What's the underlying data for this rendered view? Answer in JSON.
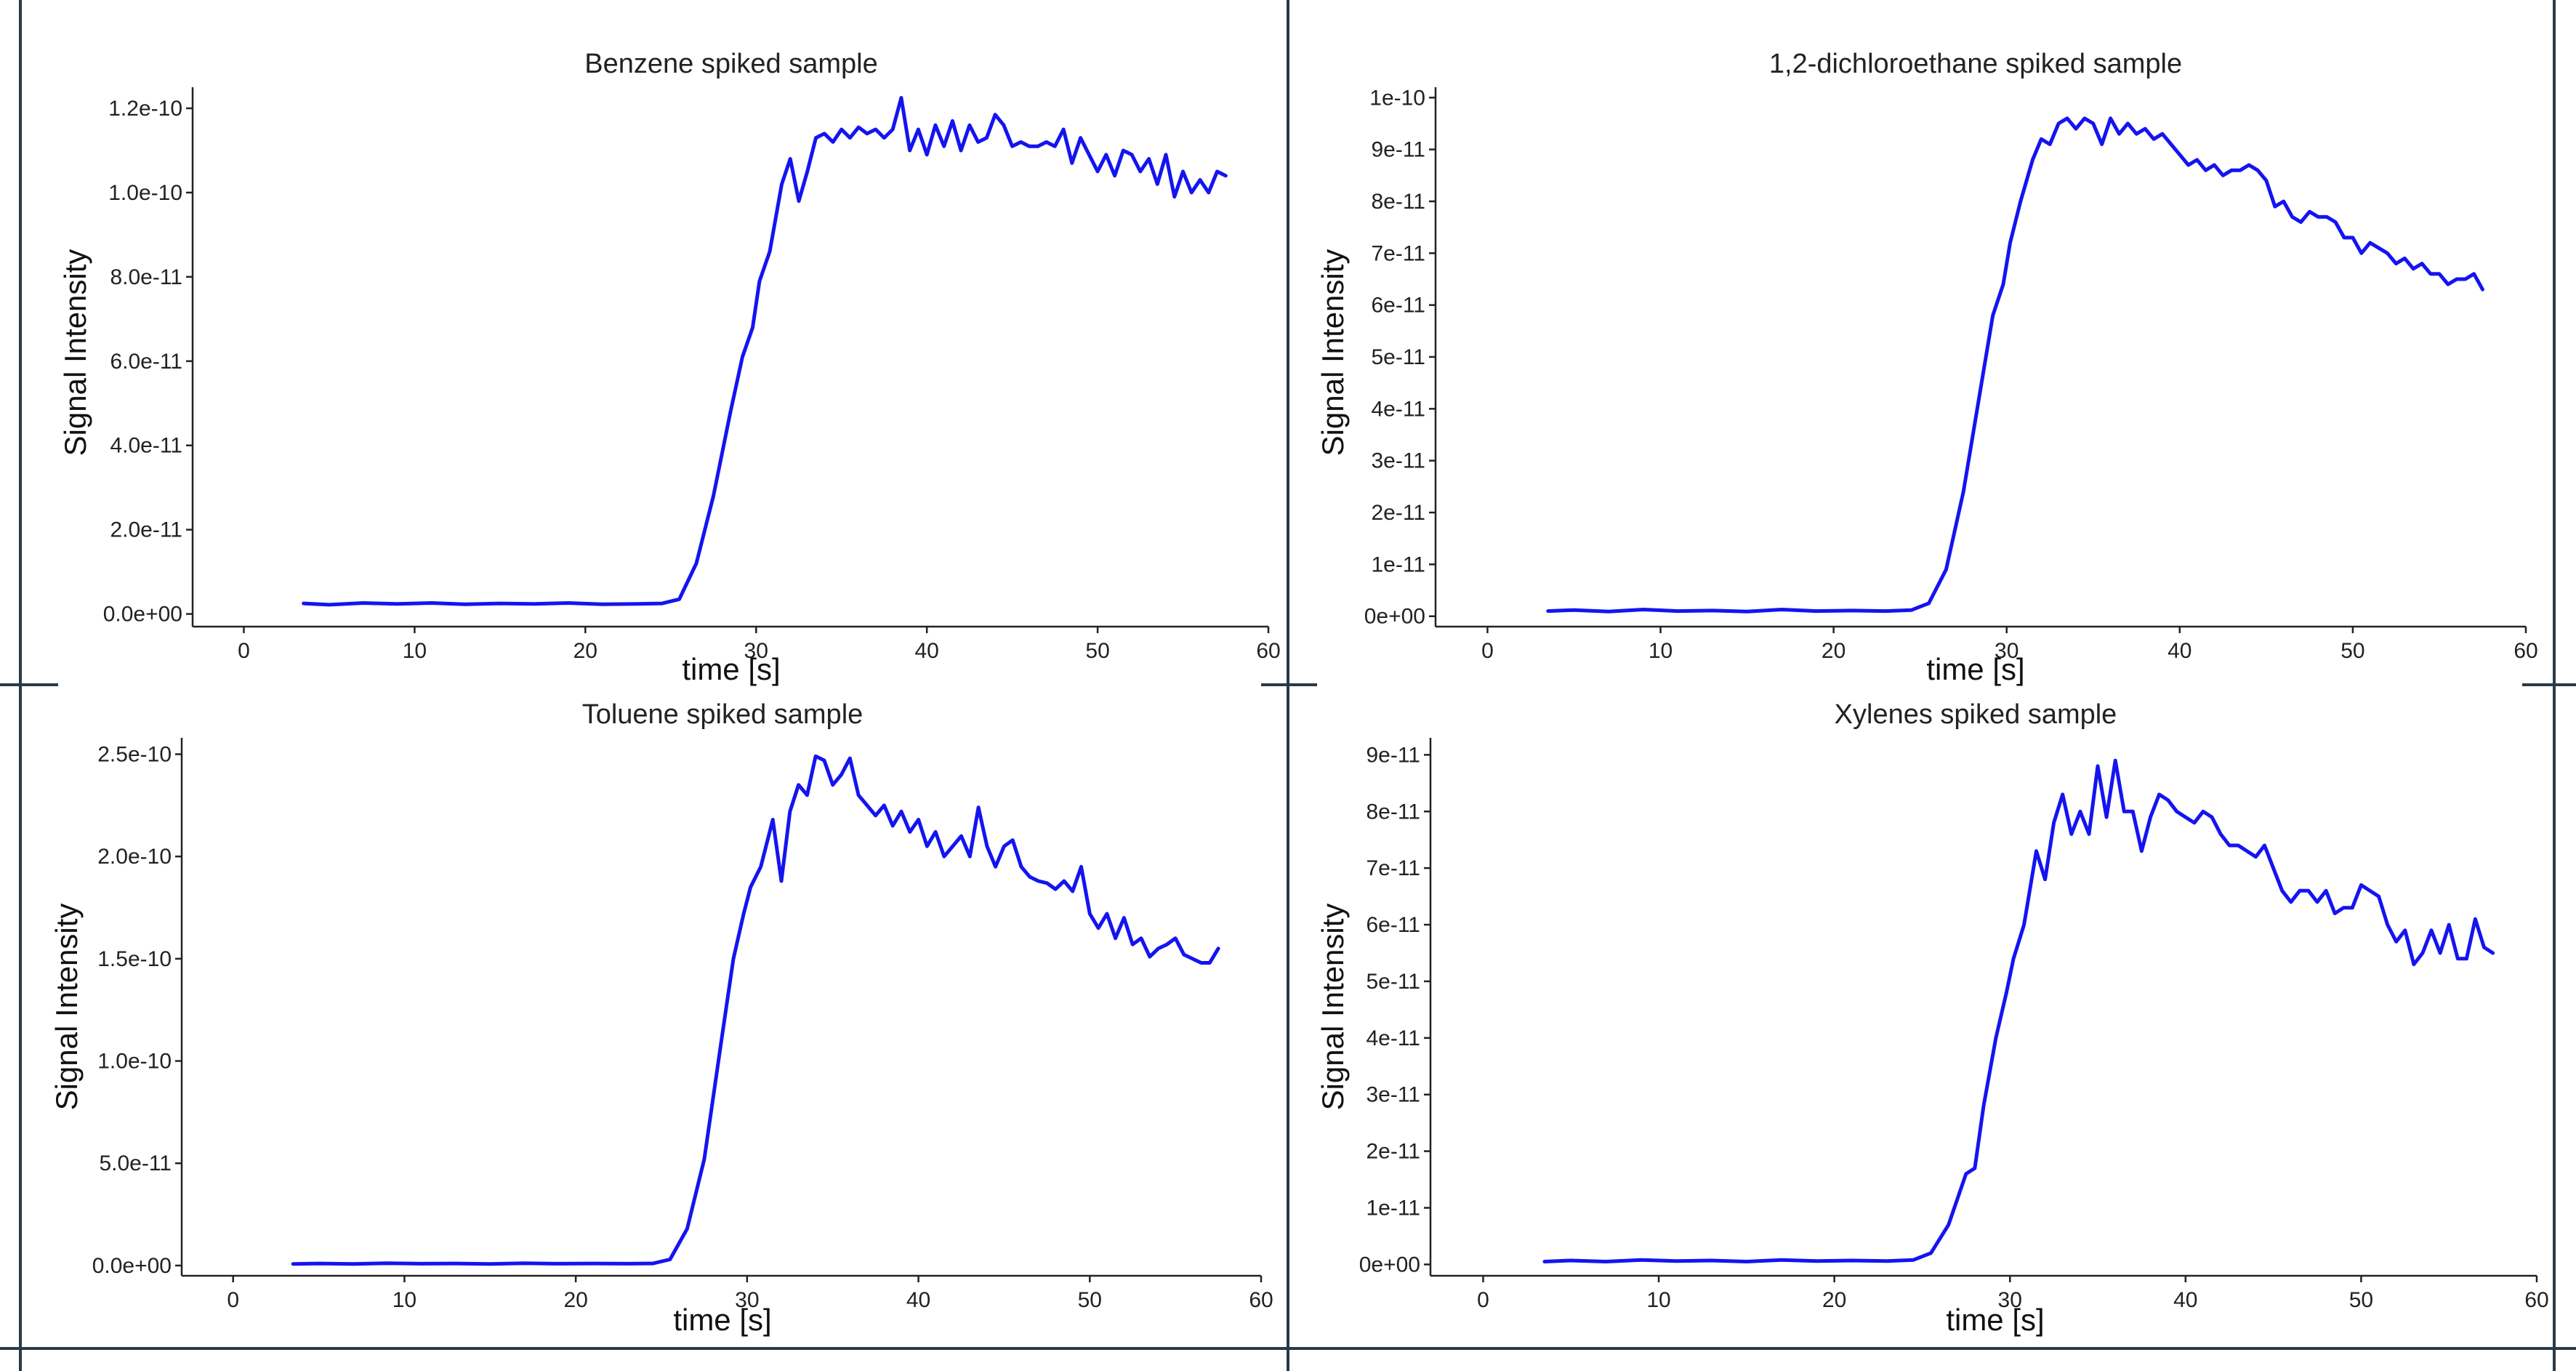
{
  "colors": {
    "line": "#1414f0",
    "frame": "#2a3a46"
  },
  "chart_data": [
    {
      "type": "line",
      "title": "Benzene spiked sample",
      "xlabel": "time [s]",
      "ylabel": "Signal Intensity",
      "xlim": [
        -3,
        60
      ],
      "ylim": [
        -3e-12,
        1.25e-10
      ],
      "xticks": [
        0,
        10,
        20,
        30,
        40,
        50,
        60
      ],
      "xtick_labels": [
        "0",
        "10",
        "20",
        "30",
        "40",
        "50",
        "60"
      ],
      "yticks": [
        0,
        2e-11,
        4e-11,
        6e-11,
        8e-11,
        1e-10,
        1.2e-10
      ],
      "ytick_labels": [
        "0.0e+00",
        "2.0e-11",
        "4.0e-11",
        "6.0e-11",
        "8.0e-11",
        "1.0e-10",
        "1.2e-10"
      ],
      "series": [
        {
          "x": [
            3.5,
            5,
            7,
            9,
            11,
            13,
            15,
            17,
            19,
            21,
            23,
            24.5,
            25.5,
            26.5,
            27.5,
            28.5,
            29.2,
            29.8,
            30.2,
            30.8,
            31.5,
            32,
            32.5,
            33,
            33.5,
            34,
            34.5,
            35,
            35.5,
            36,
            36.5,
            37,
            37.5,
            38,
            38.5,
            39,
            39.5,
            40,
            40.5,
            41,
            41.5,
            42,
            42.5,
            43,
            43.5,
            44,
            44.5,
            45,
            45.5,
            46,
            46.5,
            47,
            47.5,
            48,
            48.5,
            49,
            49.5,
            50,
            50.5,
            51,
            51.5,
            52,
            52.5,
            53,
            53.5,
            54,
            54.5,
            55,
            55.5,
            56,
            56.5,
            57,
            57.5
          ],
          "y": [
            2.5e-12,
            2.2e-12,
            2.6e-12,
            2.4e-12,
            2.6e-12,
            2.3e-12,
            2.5e-12,
            2.4e-12,
            2.6e-12,
            2.3e-12,
            2.4e-12,
            2.5e-12,
            3.5e-12,
            1.2e-11,
            2.8e-11,
            4.8e-11,
            6.1e-11,
            6.8e-11,
            7.9e-11,
            8.6e-11,
            1.02e-10,
            1.08e-10,
            9.8e-11,
            1.05e-10,
            1.13e-10,
            1.14e-10,
            1.12e-10,
            1.15e-10,
            1.13e-10,
            1.155e-10,
            1.14e-10,
            1.15e-10,
            1.13e-10,
            1.15e-10,
            1.225e-10,
            1.1e-10,
            1.15e-10,
            1.09e-10,
            1.16e-10,
            1.11e-10,
            1.17e-10,
            1.1e-10,
            1.16e-10,
            1.12e-10,
            1.13e-10,
            1.185e-10,
            1.16e-10,
            1.11e-10,
            1.12e-10,
            1.11e-10,
            1.11e-10,
            1.12e-10,
            1.11e-10,
            1.15e-10,
            1.07e-10,
            1.13e-10,
            1.09e-10,
            1.05e-10,
            1.09e-10,
            1.04e-10,
            1.1e-10,
            1.09e-10,
            1.05e-10,
            1.08e-10,
            1.02e-10,
            1.09e-10,
            9.9e-11,
            1.05e-10,
            1e-10,
            1.03e-10,
            1e-10,
            1.05e-10,
            1.04e-10
          ]
        }
      ]
    },
    {
      "type": "line",
      "title": "1,2-dichloroethane spiked sample",
      "xlabel": "time [s]",
      "ylabel": "Signal Intensity",
      "xlim": [
        -3,
        60
      ],
      "ylim": [
        -2e-12,
        1.02e-10
      ],
      "xticks": [
        0,
        10,
        20,
        30,
        40,
        50,
        60
      ],
      "xtick_labels": [
        "0",
        "10",
        "20",
        "30",
        "40",
        "50",
        "60"
      ],
      "yticks": [
        0,
        1e-11,
        2e-11,
        3e-11,
        4e-11,
        5e-11,
        6e-11,
        7e-11,
        8e-11,
        9e-11,
        1e-10
      ],
      "ytick_labels": [
        "0e+00",
        "1e-11",
        "2e-11",
        "3e-11",
        "4e-11",
        "5e-11",
        "6e-11",
        "7e-11",
        "8e-11",
        "9e-11",
        "1e-10"
      ],
      "series": [
        {
          "x": [
            3.5,
            5,
            7,
            9,
            11,
            13,
            15,
            17,
            19,
            21,
            23,
            24.5,
            25.5,
            26.5,
            27.5,
            28.5,
            29.2,
            29.8,
            30.2,
            30.8,
            31.5,
            32,
            32.5,
            33,
            33.5,
            34,
            34.5,
            35,
            35.5,
            36,
            36.5,
            37,
            37.5,
            38,
            38.5,
            39,
            39.5,
            40,
            40.5,
            41,
            41.5,
            42,
            42.5,
            43,
            43.5,
            44,
            44.5,
            45,
            45.5,
            46,
            46.5,
            47,
            47.5,
            48,
            48.5,
            49,
            49.5,
            50,
            50.5,
            51,
            51.5,
            52,
            52.5,
            53,
            53.5,
            54,
            54.5,
            55,
            55.5,
            56,
            56.5,
            57,
            57.5
          ],
          "y": [
            1e-12,
            1.2e-12,
            9e-13,
            1.3e-12,
            1e-12,
            1.1e-12,
            9e-13,
            1.3e-12,
            1e-12,
            1.1e-12,
            1e-12,
            1.2e-12,
            2.5e-12,
            9e-12,
            2.4e-11,
            4.4e-11,
            5.8e-11,
            6.4e-11,
            7.2e-11,
            8e-11,
            8.8e-11,
            9.2e-11,
            9.1e-11,
            9.5e-11,
            9.6e-11,
            9.4e-11,
            9.6e-11,
            9.5e-11,
            9.1e-11,
            9.6e-11,
            9.3e-11,
            9.5e-11,
            9.3e-11,
            9.4e-11,
            9.2e-11,
            9.3e-11,
            9.1e-11,
            8.9e-11,
            8.7e-11,
            8.8e-11,
            8.6e-11,
            8.7e-11,
            8.5e-11,
            8.6e-11,
            8.6e-11,
            8.7e-11,
            8.6e-11,
            8.4e-11,
            7.9e-11,
            8e-11,
            7.7e-11,
            7.6e-11,
            7.8e-11,
            7.7e-11,
            7.7e-11,
            7.6e-11,
            7.3e-11,
            7.3e-11,
            7e-11,
            7.2e-11,
            7.1e-11,
            7e-11,
            6.8e-11,
            6.9e-11,
            6.7e-11,
            6.8e-11,
            6.6e-11,
            6.6e-11,
            6.4e-11,
            6.5e-11,
            6.5e-11,
            6.6e-11,
            6.3e-11
          ]
        }
      ]
    },
    {
      "type": "line",
      "title": "Toluene spiked sample",
      "xlabel": "time [s]",
      "ylabel": "Signal Intensity",
      "xlim": [
        -3,
        60
      ],
      "ylim": [
        -5e-12,
        2.58e-10
      ],
      "xticks": [
        0,
        10,
        20,
        30,
        40,
        50,
        60
      ],
      "xtick_labels": [
        "0",
        "10",
        "20",
        "30",
        "40",
        "50",
        "60"
      ],
      "yticks": [
        0,
        5e-11,
        1e-10,
        1.5e-10,
        2e-10,
        2.5e-10
      ],
      "ytick_labels": [
        "0.0e+00",
        "5.0e-11",
        "1.0e-10",
        "1.5e-10",
        "2.0e-10",
        "2.5e-10"
      ],
      "series": [
        {
          "x": [
            3.5,
            5,
            7,
            9,
            11,
            13,
            15,
            17,
            19,
            21,
            23,
            24.5,
            25.5,
            26.5,
            27.5,
            28.5,
            29.2,
            29.8,
            30.2,
            30.8,
            31.5,
            32,
            32.5,
            33,
            33.5,
            34,
            34.5,
            35,
            35.5,
            36,
            36.5,
            37,
            37.5,
            38,
            38.5,
            39,
            39.5,
            40,
            40.5,
            41,
            41.5,
            42,
            42.5,
            43,
            43.5,
            44,
            44.5,
            45,
            45.5,
            46,
            46.5,
            47,
            47.5,
            48,
            48.5,
            49,
            49.5,
            50,
            50.5,
            51,
            51.5,
            52,
            52.5,
            53,
            53.5,
            54,
            54.5,
            55,
            55.5,
            56,
            56.5,
            57,
            57.5
          ],
          "y": [
            8e-13,
            1e-12,
            8e-13,
            1.1e-12,
            9e-13,
            1e-12,
            8e-13,
            1.1e-12,
            9e-13,
            1e-12,
            9e-13,
            1e-12,
            3e-12,
            1.8e-11,
            5.2e-11,
            1.1e-10,
            1.5e-10,
            1.72e-10,
            1.85e-10,
            1.95e-10,
            2.18e-10,
            1.88e-10,
            2.22e-10,
            2.35e-10,
            2.3e-10,
            2.49e-10,
            2.47e-10,
            2.35e-10,
            2.4e-10,
            2.48e-10,
            2.3e-10,
            2.25e-10,
            2.2e-10,
            2.25e-10,
            2.15e-10,
            2.22e-10,
            2.12e-10,
            2.18e-10,
            2.05e-10,
            2.12e-10,
            2e-10,
            2.05e-10,
            2.1e-10,
            2e-10,
            2.24e-10,
            2.05e-10,
            1.95e-10,
            2.05e-10,
            2.08e-10,
            1.95e-10,
            1.9e-10,
            1.88e-10,
            1.87e-10,
            1.84e-10,
            1.88e-10,
            1.83e-10,
            1.95e-10,
            1.72e-10,
            1.65e-10,
            1.72e-10,
            1.6e-10,
            1.7e-10,
            1.57e-10,
            1.6e-10,
            1.51e-10,
            1.55e-10,
            1.57e-10,
            1.6e-10,
            1.52e-10,
            1.5e-10,
            1.48e-10,
            1.48e-10,
            1.55e-10
          ]
        }
      ]
    },
    {
      "type": "line",
      "title": "Xylenes spiked sample",
      "xlabel": "time [s]",
      "ylabel": "Signal Intensity",
      "xlim": [
        -3,
        60
      ],
      "ylim": [
        -2e-12,
        9.3e-11
      ],
      "xticks": [
        0,
        10,
        20,
        30,
        40,
        50,
        60
      ],
      "xtick_labels": [
        "0",
        "10",
        "20",
        "30",
        "40",
        "50",
        "60"
      ],
      "yticks": [
        0,
        1e-11,
        2e-11,
        3e-11,
        4e-11,
        5e-11,
        6e-11,
        7e-11,
        8e-11,
        9e-11
      ],
      "ytick_labels": [
        "0e+00",
        "1e-11",
        "2e-11",
        "3e-11",
        "4e-11",
        "5e-11",
        "6e-11",
        "7e-11",
        "8e-11",
        "9e-11"
      ],
      "series": [
        {
          "x": [
            3.5,
            5,
            7,
            9,
            11,
            13,
            15,
            17,
            19,
            21,
            23,
            24.5,
            25.5,
            26.5,
            27.5,
            28,
            28.5,
            29.2,
            29.8,
            30.2,
            30.8,
            31.5,
            32,
            32.5,
            33,
            33.5,
            34,
            34.5,
            35,
            35.5,
            36,
            36.5,
            37,
            37.5,
            38,
            38.5,
            39,
            39.5,
            40,
            40.5,
            41,
            41.5,
            42,
            42.5,
            43,
            43.5,
            44,
            44.5,
            45,
            45.5,
            46,
            46.5,
            47,
            47.5,
            48,
            48.5,
            49,
            49.5,
            50,
            50.5,
            51,
            51.5,
            52,
            52.5,
            53,
            53.5,
            54,
            54.5,
            55,
            55.5,
            56,
            56.5,
            57,
            57.5
          ],
          "y": [
            5e-13,
            7e-13,
            5e-13,
            8e-13,
            6e-13,
            7e-13,
            5e-13,
            8e-13,
            6e-13,
            7e-13,
            6e-13,
            8e-13,
            2e-12,
            7e-12,
            1.6e-11,
            1.7e-11,
            2.8e-11,
            4e-11,
            4.8e-11,
            5.4e-11,
            6e-11,
            7.3e-11,
            6.8e-11,
            7.8e-11,
            8.3e-11,
            7.6e-11,
            8e-11,
            7.6e-11,
            8.8e-11,
            7.9e-11,
            8.9e-11,
            8e-11,
            8e-11,
            7.3e-11,
            7.9e-11,
            8.3e-11,
            8.2e-11,
            8e-11,
            7.9e-11,
            7.8e-11,
            8e-11,
            7.9e-11,
            7.6e-11,
            7.4e-11,
            7.4e-11,
            7.3e-11,
            7.2e-11,
            7.4e-11,
            7e-11,
            6.6e-11,
            6.4e-11,
            6.6e-11,
            6.6e-11,
            6.4e-11,
            6.6e-11,
            6.2e-11,
            6.3e-11,
            6.3e-11,
            6.7e-11,
            6.6e-11,
            6.5e-11,
            6e-11,
            5.7e-11,
            5.9e-11,
            5.3e-11,
            5.5e-11,
            5.9e-11,
            5.5e-11,
            6e-11,
            5.4e-11,
            5.4e-11,
            6.1e-11,
            5.6e-11,
            5.5e-11
          ]
        }
      ]
    }
  ]
}
